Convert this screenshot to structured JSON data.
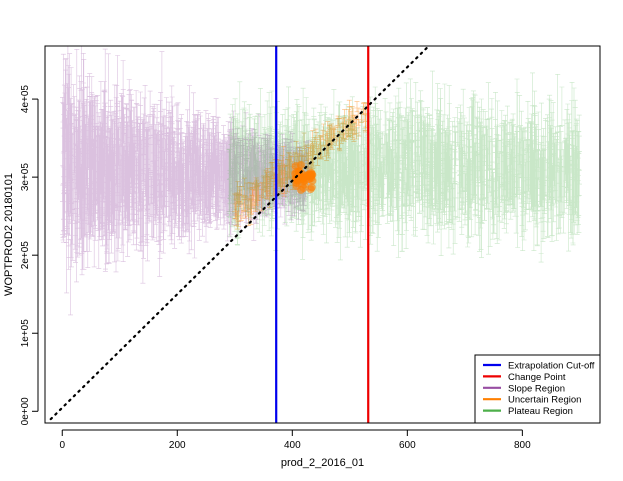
{
  "chart_data": {
    "type": "scatter",
    "title": "",
    "xlabel": "prod_2_2016_01",
    "ylabel": "WOPTPROD2 20180101",
    "xlim": [
      -30,
      935
    ],
    "ylim": [
      -15000,
      468000
    ],
    "x_ticks": [
      {
        "value": 0,
        "label": "0"
      },
      {
        "value": 200,
        "label": "200"
      },
      {
        "value": 400,
        "label": "400"
      },
      {
        "value": 600,
        "label": "600"
      },
      {
        "value": 800,
        "label": "800"
      }
    ],
    "y_ticks": [
      {
        "value": 0,
        "label": "0e+00"
      },
      {
        "value": 100000,
        "label": "1e+05"
      },
      {
        "value": 200000,
        "label": "2e+05"
      },
      {
        "value": 300000,
        "label": "3e+05"
      },
      {
        "value": 400000,
        "label": "4e+05"
      }
    ],
    "vertical_lines": [
      {
        "name": "Extrapolation Cut-off",
        "x": 372,
        "color": "#0000ee"
      },
      {
        "name": "Change Point",
        "x": 532,
        "color": "#ee0000"
      }
    ],
    "diagonal_line": {
      "style": "dotted",
      "color": "#000000",
      "from": [
        -20,
        -10000
      ],
      "to": [
        640,
        470000
      ]
    },
    "regions": [
      {
        "name": "Slope Region",
        "color": "#984ea3",
        "x_range": [
          0,
          430
        ],
        "y_center": [
          310000,
          300000
        ],
        "spread": [
          85000,
          25000
        ]
      },
      {
        "name": "Uncertain Region",
        "color": "#ff7f00",
        "x_range": [
          300,
          530
        ],
        "y_center": [
          260000,
          380000
        ],
        "spread": [
          20000,
          15000
        ]
      },
      {
        "name": "Plateau Region",
        "color": "#4daf4a",
        "x_range": [
          290,
          900
        ],
        "y_center": [
          310000,
          310000
        ],
        "spread": [
          50000,
          60000
        ]
      }
    ],
    "legend": {
      "placement": "bottom-right",
      "entries": [
        {
          "label": "Extrapolation Cut-off",
          "color": "#0000ee"
        },
        {
          "label": "Change Point",
          "color": "#ee0000"
        },
        {
          "label": "Slope Region",
          "color": "#984ea3"
        },
        {
          "label": "Uncertain Region",
          "color": "#ff7f00"
        },
        {
          "label": "Plateau Region",
          "color": "#4daf4a"
        }
      ]
    },
    "grid": false
  }
}
